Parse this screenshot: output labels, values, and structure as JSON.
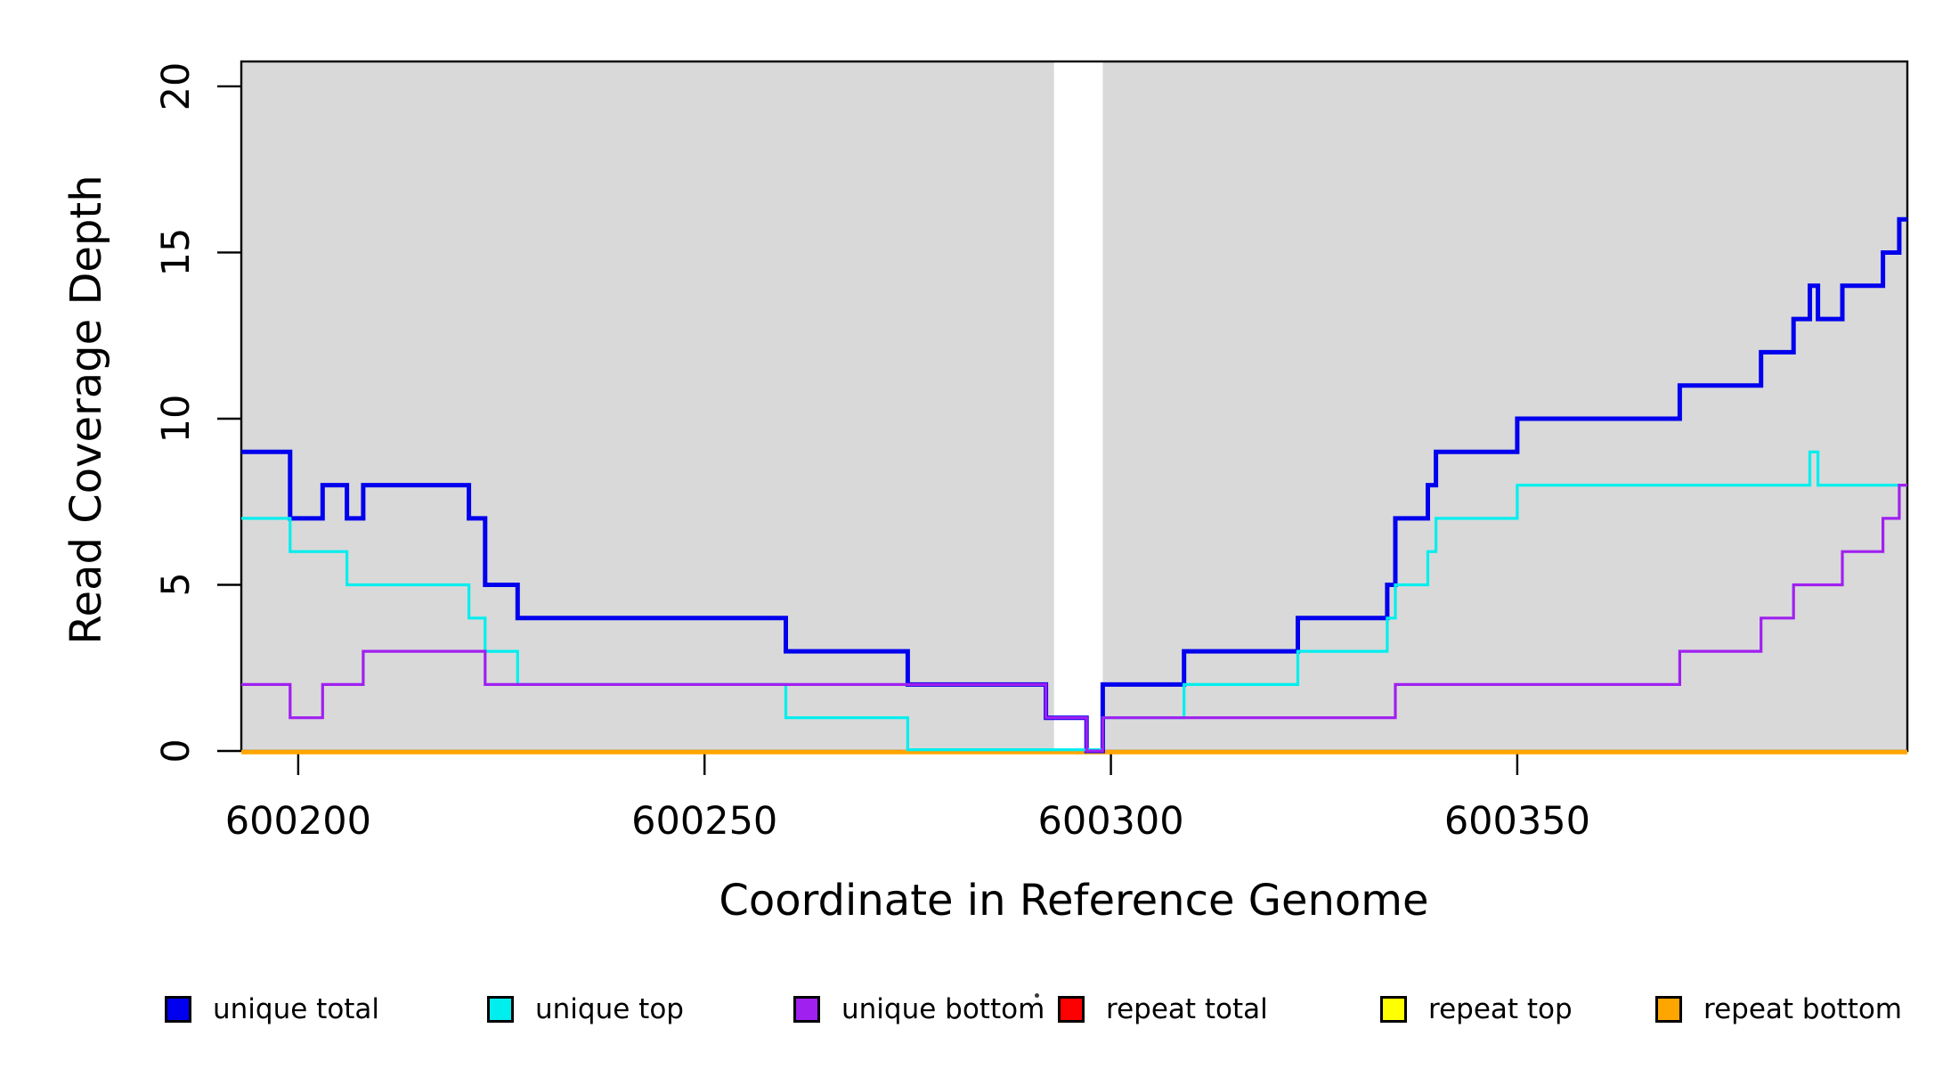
{
  "chart_data": {
    "type": "line",
    "subtype": "step",
    "title": "",
    "xlabel": "Coordinate in Reference Genome",
    "ylabel": "Read Coverage Depth",
    "xlim": [
      600193,
      600398
    ],
    "ylim": [
      0,
      20.75
    ],
    "x_ticks": [
      600200,
      600250,
      600300,
      600350
    ],
    "y_ticks": [
      0,
      5,
      10,
      15,
      20
    ],
    "grid": false,
    "plot_background": "#ffffff",
    "shaded_bands": [
      {
        "x0": 600193,
        "x1": 600293,
        "color": "#D9D9D9"
      },
      {
        "x0": 600299,
        "x1": 600398,
        "color": "#D9D9D9"
      }
    ],
    "series": [
      {
        "name": "unique total",
        "color": "#0000EE",
        "width": 5,
        "steps": [
          [
            600193,
            9
          ],
          [
            600199,
            7
          ],
          [
            600203,
            8
          ],
          [
            600206,
            7
          ],
          [
            600208,
            8
          ],
          [
            600221,
            7
          ],
          [
            600223,
            5
          ],
          [
            600227,
            4
          ],
          [
            600260,
            3
          ],
          [
            600275,
            2
          ],
          [
            600292,
            1
          ],
          [
            600297,
            0
          ],
          [
            600299,
            2
          ],
          [
            600309,
            3
          ],
          [
            600323,
            4
          ],
          [
            600334,
            5
          ],
          [
            600335,
            7
          ],
          [
            600339,
            8
          ],
          [
            600340,
            9
          ],
          [
            600350,
            10
          ],
          [
            600370,
            11
          ],
          [
            600380,
            12
          ],
          [
            600384,
            13
          ],
          [
            600386,
            14
          ],
          [
            600387,
            13
          ],
          [
            600390,
            14
          ],
          [
            600395,
            15
          ],
          [
            600397,
            16
          ]
        ]
      },
      {
        "name": "unique top",
        "color": "#00EEEE",
        "width": 3.2,
        "steps": [
          [
            600193,
            7
          ],
          [
            600199,
            6
          ],
          [
            600206,
            5
          ],
          [
            600221,
            4
          ],
          [
            600223,
            3
          ],
          [
            600227,
            2
          ],
          [
            600260,
            1
          ],
          [
            600275,
            0
          ],
          [
            600299,
            1
          ],
          [
            600309,
            2
          ],
          [
            600323,
            3
          ],
          [
            600334,
            4
          ],
          [
            600335,
            5
          ],
          [
            600339,
            6
          ],
          [
            600340,
            7
          ],
          [
            600350,
            8
          ],
          [
            600386,
            9
          ],
          [
            600387,
            8
          ]
        ]
      },
      {
        "name": "unique bottom",
        "color": "#A020F0",
        "width": 3.2,
        "steps": [
          [
            600193,
            2
          ],
          [
            600199,
            1
          ],
          [
            600203,
            2
          ],
          [
            600208,
            3
          ],
          [
            600223,
            2
          ],
          [
            600292,
            1
          ],
          [
            600297,
            0
          ],
          [
            600299,
            1
          ],
          [
            600335,
            2
          ],
          [
            600370,
            3
          ],
          [
            600380,
            4
          ],
          [
            600384,
            5
          ],
          [
            600390,
            6
          ],
          [
            600395,
            7
          ],
          [
            600397,
            8
          ]
        ]
      },
      {
        "name": "repeat total",
        "color": "#FF0000",
        "width": 3,
        "steps": [
          [
            600193,
            0
          ]
        ]
      },
      {
        "name": "repeat top",
        "color": "#FFFF00",
        "width": 3,
        "steps": [
          [
            600193,
            0
          ]
        ]
      },
      {
        "name": "repeat bottom",
        "color": "#FFA500",
        "width": 5,
        "steps": [
          [
            600193,
            0
          ]
        ]
      }
    ],
    "legend": {
      "position": "bottom",
      "entries": [
        {
          "label": "unique total",
          "color": "#0000EE"
        },
        {
          "label": "unique top",
          "color": "#00EEEE"
        },
        {
          "label": "unique bottom",
          "color": "#A020F0"
        },
        {
          "label": "repeat total",
          "color": "#FF0000"
        },
        {
          "label": "repeat top",
          "color": "#FFFF00"
        },
        {
          "label": "repeat bottom",
          "color": "#FFA500"
        }
      ]
    }
  }
}
